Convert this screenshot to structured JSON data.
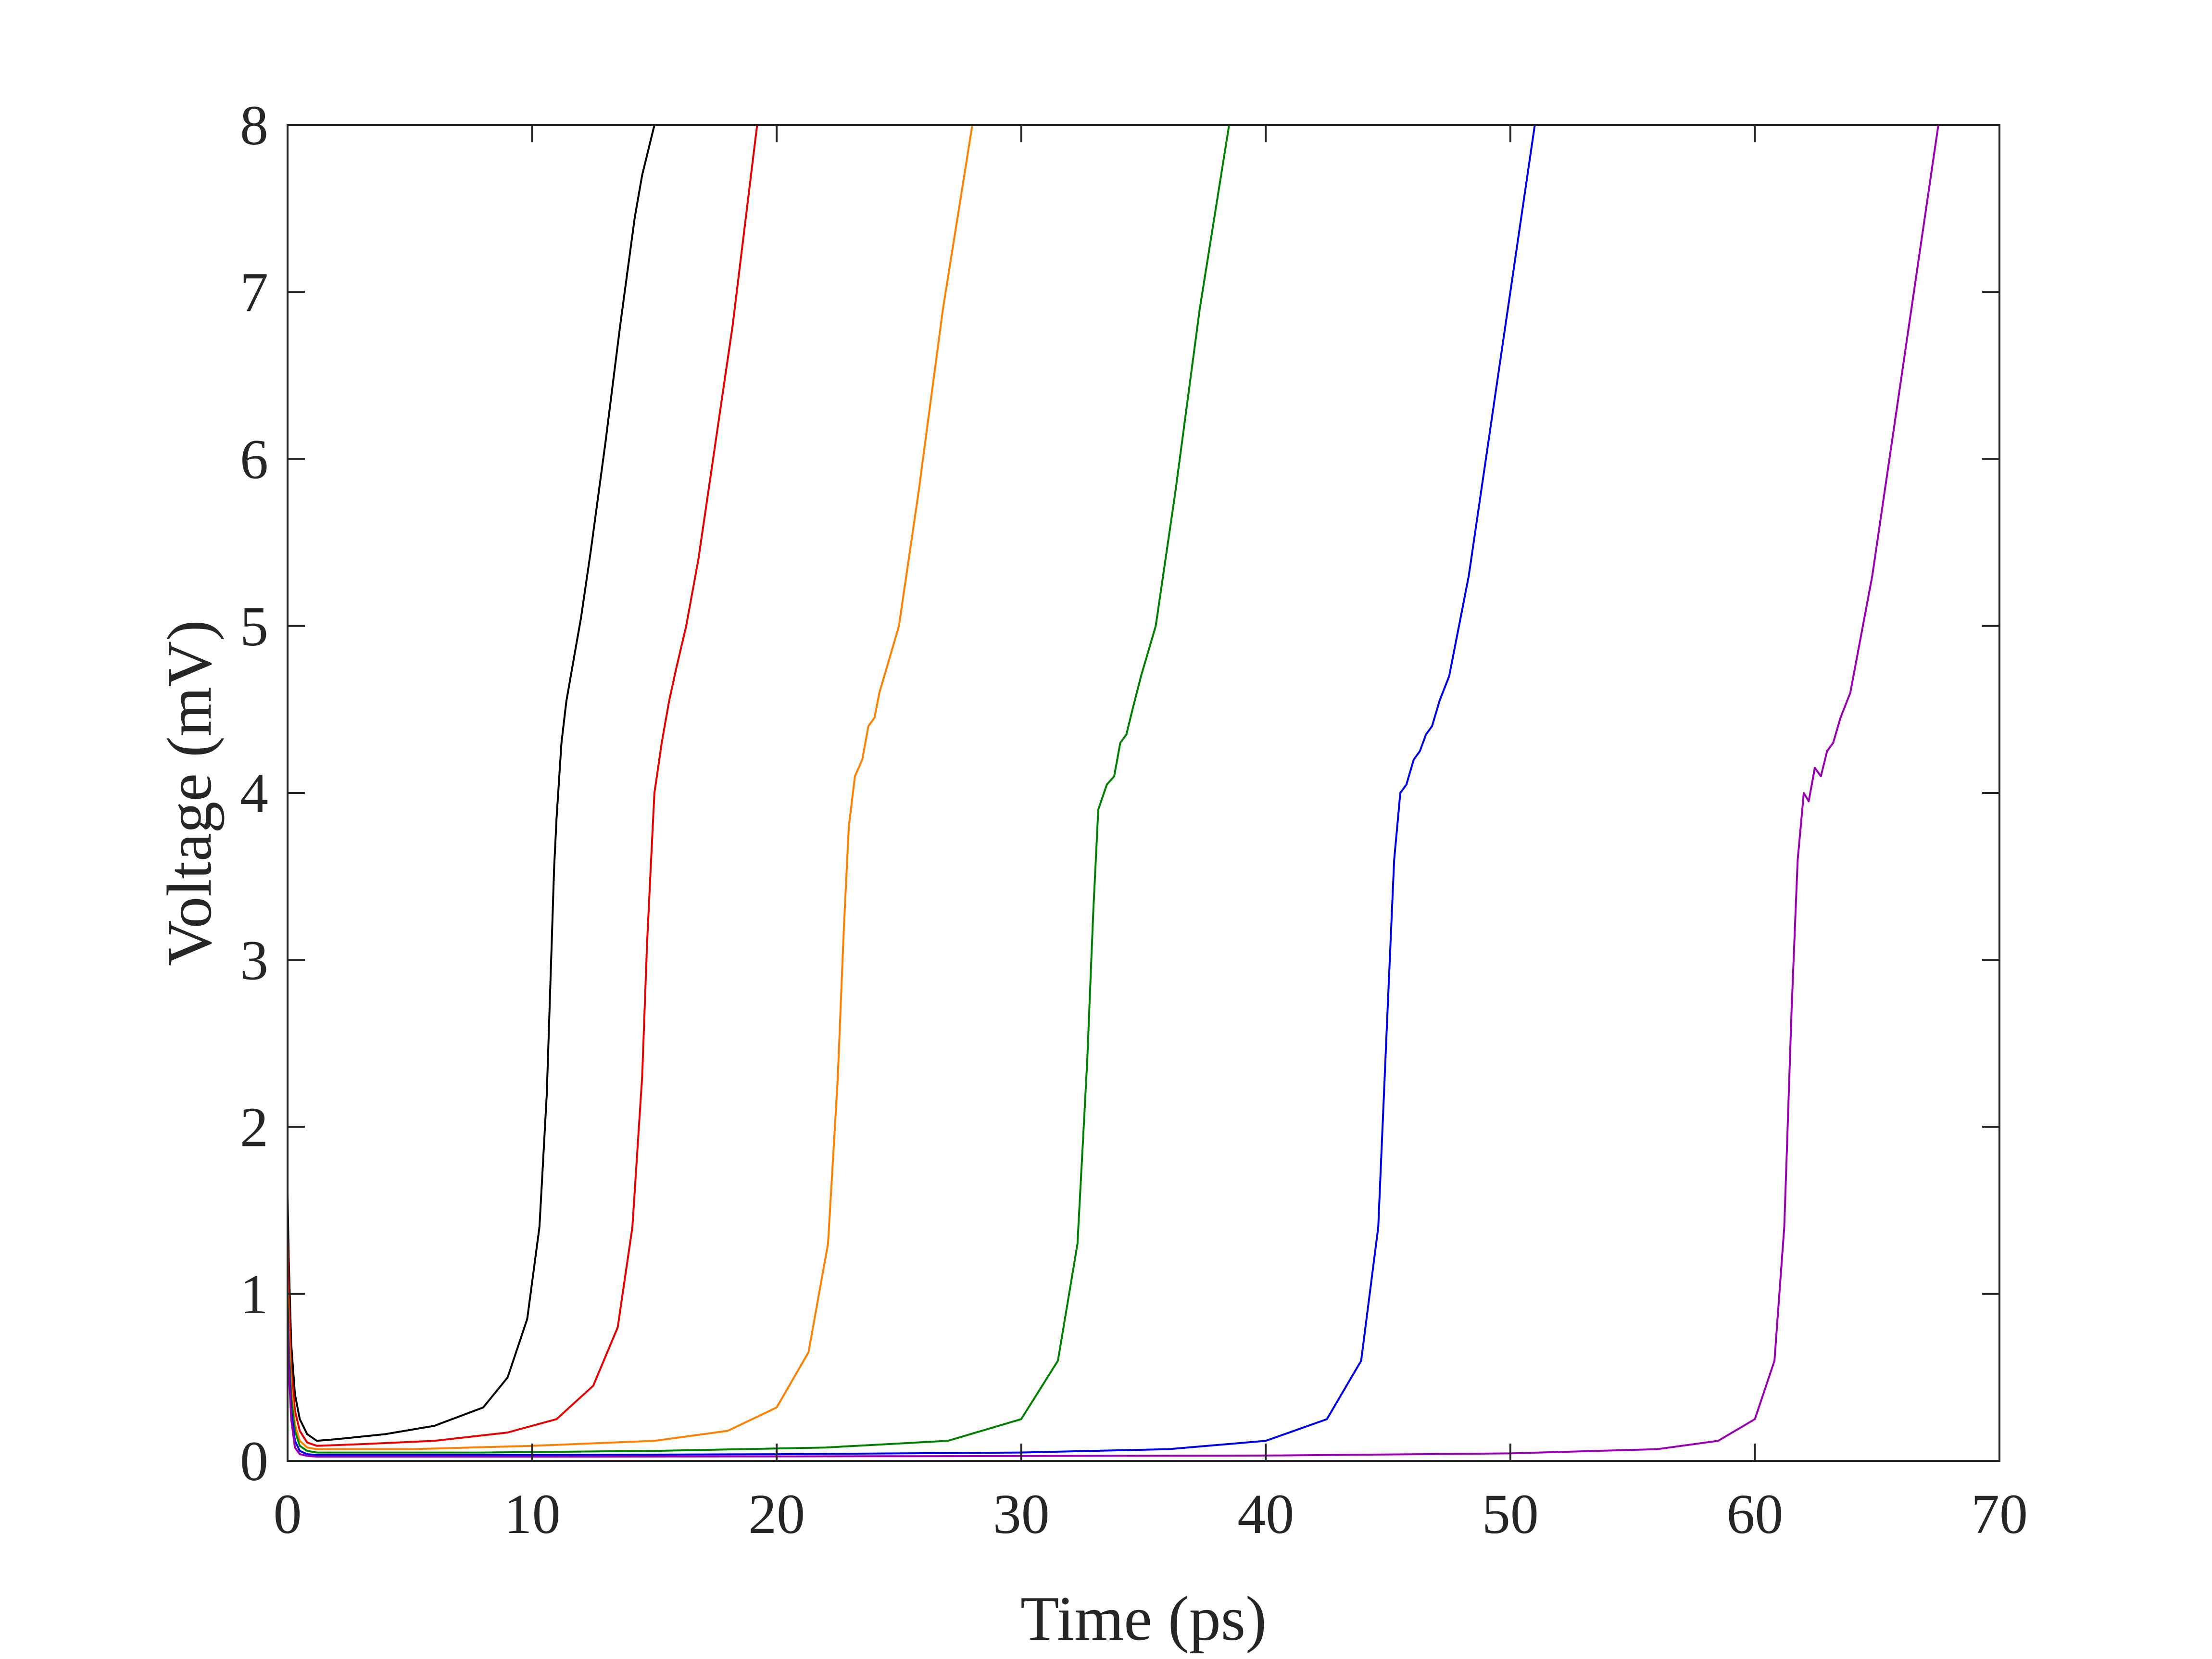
{
  "chart_data": {
    "type": "line",
    "title": "",
    "xlabel": "Time (ps)",
    "ylabel": "Voltage (mV)",
    "xlim": [
      0,
      70
    ],
    "ylim": [
      0,
      8
    ],
    "xticks": [
      "0",
      "10",
      "20",
      "30",
      "40",
      "50",
      "60",
      "70"
    ],
    "yticks": [
      "0",
      "1",
      "2",
      "3",
      "4",
      "5",
      "6",
      "7",
      "8"
    ],
    "grid": false,
    "legend": "none",
    "series": [
      {
        "color": "#000000",
        "x": [
          0,
          0.05,
          0.15,
          0.3,
          0.5,
          0.8,
          1.2,
          2,
          4,
          6,
          8,
          9,
          9.8,
          10.3,
          10.6,
          10.8,
          10.9,
          11.0,
          11.2,
          11.4,
          11.7,
          12.0,
          12.4,
          13.0,
          13.6,
          14.2,
          14.5,
          15.0
        ],
        "y": [
          1.6,
          1.2,
          0.7,
          0.4,
          0.25,
          0.16,
          0.12,
          0.13,
          0.16,
          0.21,
          0.32,
          0.5,
          0.85,
          1.4,
          2.2,
          3.1,
          3.55,
          3.85,
          4.3,
          4.55,
          4.8,
          5.05,
          5.45,
          6.1,
          6.8,
          7.45,
          7.7,
          8.0
        ]
      },
      {
        "color": "#e60000",
        "x": [
          0,
          0.05,
          0.15,
          0.3,
          0.5,
          0.8,
          1.2,
          3,
          6,
          9,
          11,
          12.5,
          13.5,
          14.1,
          14.5,
          14.7,
          14.85,
          15.0,
          15.3,
          15.6,
          15.9,
          16.3,
          16.8,
          17.5,
          18.2,
          19.2
        ],
        "y": [
          1.35,
          1.0,
          0.55,
          0.3,
          0.18,
          0.11,
          0.09,
          0.1,
          0.12,
          0.17,
          0.25,
          0.45,
          0.8,
          1.4,
          2.3,
          3.1,
          3.55,
          4.0,
          4.3,
          4.55,
          4.75,
          5.0,
          5.4,
          6.1,
          6.8,
          8.0
        ]
      },
      {
        "color": "#ff8000",
        "x": [
          0,
          0.05,
          0.15,
          0.3,
          0.5,
          0.8,
          1.2,
          5,
          10,
          15,
          18,
          20,
          21.3,
          22.1,
          22.5,
          22.75,
          22.95,
          23.2,
          23.5,
          23.75,
          24.0,
          24.2,
          24.5,
          25.0,
          25.8,
          26.8,
          28.0
        ],
        "y": [
          1.1,
          0.8,
          0.45,
          0.22,
          0.12,
          0.08,
          0.07,
          0.07,
          0.09,
          0.12,
          0.18,
          0.32,
          0.65,
          1.3,
          2.3,
          3.2,
          3.8,
          4.1,
          4.2,
          4.4,
          4.45,
          4.6,
          4.75,
          5.0,
          5.8,
          6.9,
          8.0
        ]
      },
      {
        "color": "#008000",
        "x": [
          0,
          0.05,
          0.15,
          0.3,
          0.5,
          0.8,
          1.2,
          8,
          15,
          22,
          27,
          30,
          31.5,
          32.3,
          32.7,
          32.95,
          33.15,
          33.5,
          33.8,
          34.05,
          34.3,
          34.55,
          34.9,
          35.5,
          36.3,
          37.3,
          38.5
        ],
        "y": [
          1.0,
          0.7,
          0.38,
          0.18,
          0.09,
          0.06,
          0.05,
          0.05,
          0.06,
          0.08,
          0.12,
          0.25,
          0.6,
          1.3,
          2.4,
          3.3,
          3.9,
          4.05,
          4.1,
          4.3,
          4.35,
          4.5,
          4.7,
          5.0,
          5.8,
          6.9,
          8.0
        ]
      },
      {
        "color": "#0000e6",
        "x": [
          0,
          0.05,
          0.15,
          0.3,
          0.5,
          0.8,
          1.2,
          10,
          20,
          30,
          36,
          40,
          42.5,
          43.9,
          44.6,
          44.95,
          45.25,
          45.5,
          45.75,
          46.05,
          46.3,
          46.55,
          46.8,
          47.1,
          47.5,
          48.3,
          49.4,
          51.0
        ],
        "y": [
          0.95,
          0.6,
          0.3,
          0.12,
          0.06,
          0.04,
          0.035,
          0.035,
          0.04,
          0.05,
          0.07,
          0.12,
          0.25,
          0.6,
          1.4,
          2.6,
          3.6,
          4.0,
          4.05,
          4.2,
          4.25,
          4.35,
          4.4,
          4.55,
          4.7,
          5.3,
          6.4,
          8.0
        ]
      },
      {
        "color": "#9900b3",
        "x": [
          0,
          0.05,
          0.15,
          0.3,
          0.5,
          0.8,
          1.2,
          10,
          25,
          40,
          50,
          56,
          58.5,
          60,
          60.8,
          61.2,
          61.5,
          61.75,
          62.0,
          62.2,
          62.45,
          62.7,
          62.95,
          63.2,
          63.5,
          63.9,
          64.8,
          66.0,
          67.5
        ],
        "y": [
          0.9,
          0.55,
          0.25,
          0.08,
          0.04,
          0.03,
          0.025,
          0.025,
          0.028,
          0.032,
          0.045,
          0.07,
          0.12,
          0.25,
          0.6,
          1.4,
          2.7,
          3.6,
          4.0,
          3.95,
          4.15,
          4.1,
          4.25,
          4.3,
          4.45,
          4.6,
          5.3,
          6.5,
          8.0
        ]
      }
    ]
  }
}
